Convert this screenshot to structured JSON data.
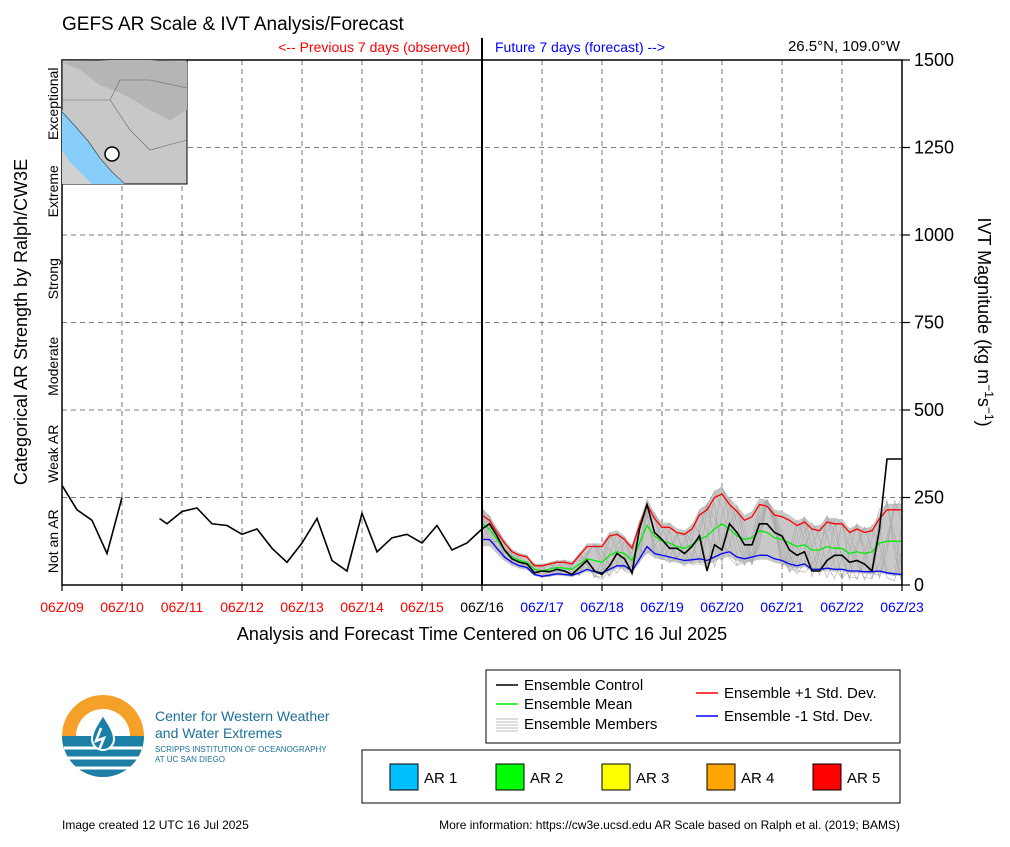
{
  "header": {
    "title": "GEFS AR Scale & IVT Analysis/Forecast",
    "previous_label": "<-- Previous 7 days (observed)",
    "future_label": "Future 7 days (forecast) -->",
    "location": "26.5°N, 109.0°W"
  },
  "axes": {
    "xlabel": "Analysis and Forecast Time Centered on 06 UTC 16 Jul 2025",
    "ylabel_left": "Categorical AR Strength by Ralph/CW3E",
    "ylabel_right_base": "IVT Magnitude (kg m",
    "ylabel_right_sup1": "−1",
    "ylabel_right_mid": "s",
    "ylabel_right_sup2": "−1",
    "ylabel_right_end": ")",
    "categories": [
      "Not an AR",
      "Weak AR",
      "Moderate",
      "Strong",
      "Extreme",
      "Exceptional"
    ]
  },
  "chart_data": {
    "type": "line",
    "x_unit": "days from 06Z/09 Jul 2025",
    "xlim": [
      0,
      14
    ],
    "ylim": [
      0,
      1500
    ],
    "grid": true,
    "y_ticks": [
      0,
      250,
      500,
      750,
      1000,
      1250,
      1500
    ],
    "x_ticks": [
      {
        "label": "06Z/09",
        "period": "observed"
      },
      {
        "label": "06Z/10",
        "period": "observed"
      },
      {
        "label": "06Z/11",
        "period": "observed"
      },
      {
        "label": "06Z/12",
        "period": "observed"
      },
      {
        "label": "06Z/13",
        "period": "observed"
      },
      {
        "label": "06Z/14",
        "period": "observed"
      },
      {
        "label": "06Z/15",
        "period": "observed"
      },
      {
        "label": "06Z/16",
        "period": "now"
      },
      {
        "label": "06Z/17",
        "period": "forecast"
      },
      {
        "label": "06Z/18",
        "period": "forecast"
      },
      {
        "label": "06Z/19",
        "period": "forecast"
      },
      {
        "label": "06Z/20",
        "period": "forecast"
      },
      {
        "label": "06Z/21",
        "period": "forecast"
      },
      {
        "label": "06Z/22",
        "period": "forecast"
      },
      {
        "label": "06Z/23",
        "period": "forecast"
      }
    ],
    "observed": {
      "name": "Ensemble Control",
      "segments": [
        [
          [
            0,
            285
          ],
          [
            0.25,
            215
          ],
          [
            0.5,
            185
          ],
          [
            0.75,
            90
          ],
          [
            1.0,
            250
          ]
        ],
        [
          [
            1.625,
            190
          ],
          [
            1.75,
            175
          ],
          [
            2.0,
            210
          ],
          [
            2.25,
            220
          ],
          [
            2.5,
            175
          ],
          [
            2.75,
            170
          ],
          [
            3.0,
            145
          ],
          [
            3.25,
            160
          ],
          [
            3.5,
            105
          ],
          [
            3.75,
            65
          ],
          [
            4.0,
            120
          ],
          [
            4.25,
            190
          ],
          [
            4.5,
            70
          ],
          [
            4.75,
            40
          ],
          [
            5.0,
            205
          ],
          [
            5.25,
            95
          ],
          [
            5.5,
            135
          ],
          [
            5.75,
            145
          ],
          [
            6.0,
            120
          ],
          [
            6.25,
            170
          ],
          [
            6.5,
            100
          ],
          [
            6.75,
            120
          ],
          [
            7.0,
            160
          ]
        ]
      ]
    },
    "forecast_x": [
      7.0,
      7.125,
      7.25,
      7.375,
      7.5,
      7.625,
      7.75,
      7.875,
      8.0,
      8.125,
      8.25,
      8.375,
      8.5,
      8.625,
      8.75,
      8.875,
      9.0,
      9.125,
      9.25,
      9.375,
      9.5,
      9.625,
      9.75,
      9.875,
      10.0,
      10.125,
      10.25,
      10.375,
      10.5,
      10.625,
      10.75,
      10.875,
      11.0,
      11.125,
      11.25,
      11.375,
      11.5,
      11.625,
      11.75,
      11.875,
      12.0,
      12.125,
      12.25,
      12.375,
      12.5,
      12.625,
      12.75,
      12.875,
      13.0,
      13.125,
      13.25,
      13.375,
      13.5,
      13.625,
      13.75,
      13.875,
      14.0
    ],
    "series": [
      {
        "name": "Ensemble Control",
        "color": "#000000",
        "values": [
          160,
          175,
          140,
          100,
          75,
          65,
          60,
          35,
          40,
          38,
          45,
          40,
          30,
          50,
          70,
          40,
          30,
          55,
          90,
          75,
          35,
          160,
          230,
          150,
          130,
          105,
          105,
          90,
          110,
          140,
          40,
          115,
          100,
          175,
          150,
          115,
          115,
          175,
          175,
          150,
          140,
          100,
          85,
          95,
          40,
          40,
          70,
          85,
          85,
          65,
          70,
          60,
          40,
          160,
          360,
          360,
          360
        ]
      },
      {
        "name": "Ensemble Mean",
        "color": "#00ee00",
        "values": [
          175,
          160,
          130,
          100,
          80,
          70,
          65,
          45,
          40,
          45,
          50,
          48,
          45,
          60,
          75,
          70,
          65,
          85,
          95,
          90,
          70,
          120,
          170,
          140,
          125,
          120,
          110,
          105,
          115,
          130,
          140,
          160,
          175,
          160,
          140,
          130,
          135,
          155,
          150,
          135,
          130,
          120,
          110,
          115,
          100,
          100,
          110,
          105,
          105,
          90,
          95,
          90,
          95,
          120,
          125,
          125,
          125
        ]
      },
      {
        "name": "Ensemble +1 Std. Dev.",
        "color": "#ff0000",
        "values": [
          200,
          185,
          150,
          120,
          95,
          85,
          80,
          55,
          55,
          60,
          65,
          65,
          60,
          85,
          110,
          110,
          110,
          140,
          145,
          130,
          105,
          170,
          230,
          190,
          165,
          165,
          150,
          145,
          160,
          200,
          215,
          250,
          260,
          230,
          210,
          185,
          195,
          230,
          225,
          200,
          195,
          185,
          170,
          180,
          160,
          155,
          180,
          175,
          175,
          150,
          160,
          150,
          155,
          190,
          215,
          215,
          215
        ]
      },
      {
        "name": "Ensemble -1 Std. Dev.",
        "color": "#0000ff",
        "values": [
          130,
          130,
          105,
          80,
          65,
          55,
          50,
          30,
          25,
          28,
          32,
          30,
          28,
          35,
          45,
          38,
          35,
          45,
          55,
          55,
          40,
          75,
          110,
          90,
          85,
          80,
          75,
          70,
          72,
          75,
          70,
          80,
          90,
          95,
          80,
          75,
          80,
          85,
          85,
          75,
          70,
          60,
          55,
          60,
          45,
          45,
          48,
          45,
          45,
          40,
          40,
          38,
          38,
          40,
          35,
          32,
          30
        ]
      }
    ],
    "members_note": "Ensemble Members",
    "members_color": "#bbbbbb"
  },
  "legend": {
    "lines": [
      {
        "label": "Ensemble Control",
        "color": "#000000"
      },
      {
        "label": "Ensemble Mean",
        "color": "#00ee00"
      },
      {
        "label": "Ensemble Members",
        "color": "#bbbbbb"
      },
      {
        "label": "Ensemble +1 Std. Dev.",
        "color": "#ff0000"
      },
      {
        "label": "Ensemble -1 Std. Dev.",
        "color": "#0000ff"
      }
    ],
    "ar_boxes": [
      {
        "label": "AR 1",
        "color": "#00bfff"
      },
      {
        "label": "AR 2",
        "color": "#00ff00"
      },
      {
        "label": "AR 3",
        "color": "#ffff00"
      },
      {
        "label": "AR 4",
        "color": "#ffa500"
      },
      {
        "label": "AR 5",
        "color": "#ff0000"
      }
    ]
  },
  "logo": {
    "line1": "Center for Western Weather",
    "line2": "and Water Extremes",
    "line3": "SCRIPPS INSTITUTION OF OCEANOGRAPHY",
    "line4": "AT UC SAN DIEGO"
  },
  "footer": {
    "created": "Image created 12 UTC 16 Jul 2025",
    "info": "More information: https://cw3e.ucsd.edu AR Scale based on Ralph et al. (2019; BAMS)"
  },
  "colors": {
    "observed_tick": "#ff0000",
    "now_tick": "#000000",
    "forecast_tick": "#0000ff",
    "previous_label": "#ff0000",
    "future_label": "#0000ff",
    "logo_orange": "#f5a028",
    "logo_teal": "#1b7fa6"
  }
}
